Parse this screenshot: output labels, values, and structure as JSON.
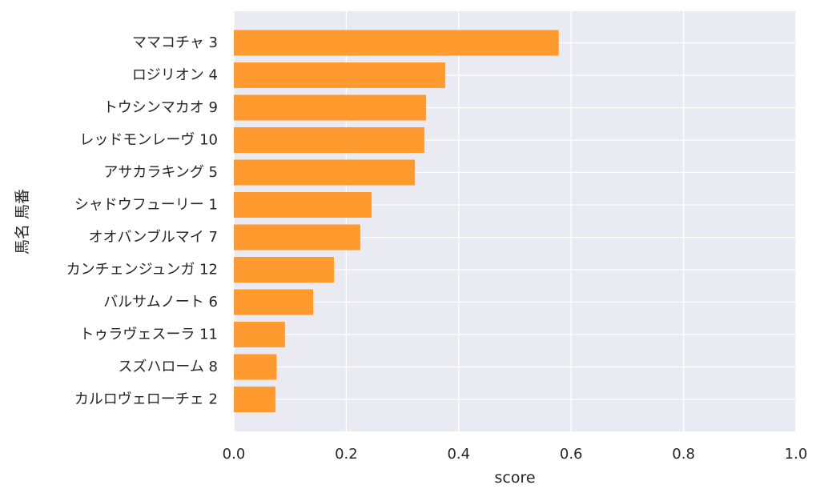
{
  "chart_data": {
    "type": "bar",
    "orientation": "horizontal",
    "categories": [
      "ママコチャ 3",
      "ロジリオン 4",
      "トウシンマカオ 9",
      "レッドモンレーヴ 10",
      "アサカラキング 5",
      "シャドウフューリー 1",
      "オオバンブルマイ 7",
      "カンチェンジュンガ 12",
      "バルサムノート 6",
      "トゥラヴェスーラ 11",
      "スズハローム 8",
      "カルロヴェローチェ 2"
    ],
    "values": [
      0.578,
      0.376,
      0.342,
      0.339,
      0.322,
      0.245,
      0.225,
      0.178,
      0.141,
      0.091,
      0.076,
      0.074
    ],
    "xlabel": "score",
    "ylabel": "馬名 馬番",
    "xlim": [
      0,
      1.0
    ],
    "xticks": [
      "0.0",
      "0.2",
      "0.4",
      "0.6",
      "0.8",
      "1.0"
    ],
    "grid": true,
    "colors": {
      "bar": "#ff9a2e",
      "plot_background": "#eaeaf2",
      "grid": "#ffffff",
      "text": "#262626"
    }
  }
}
